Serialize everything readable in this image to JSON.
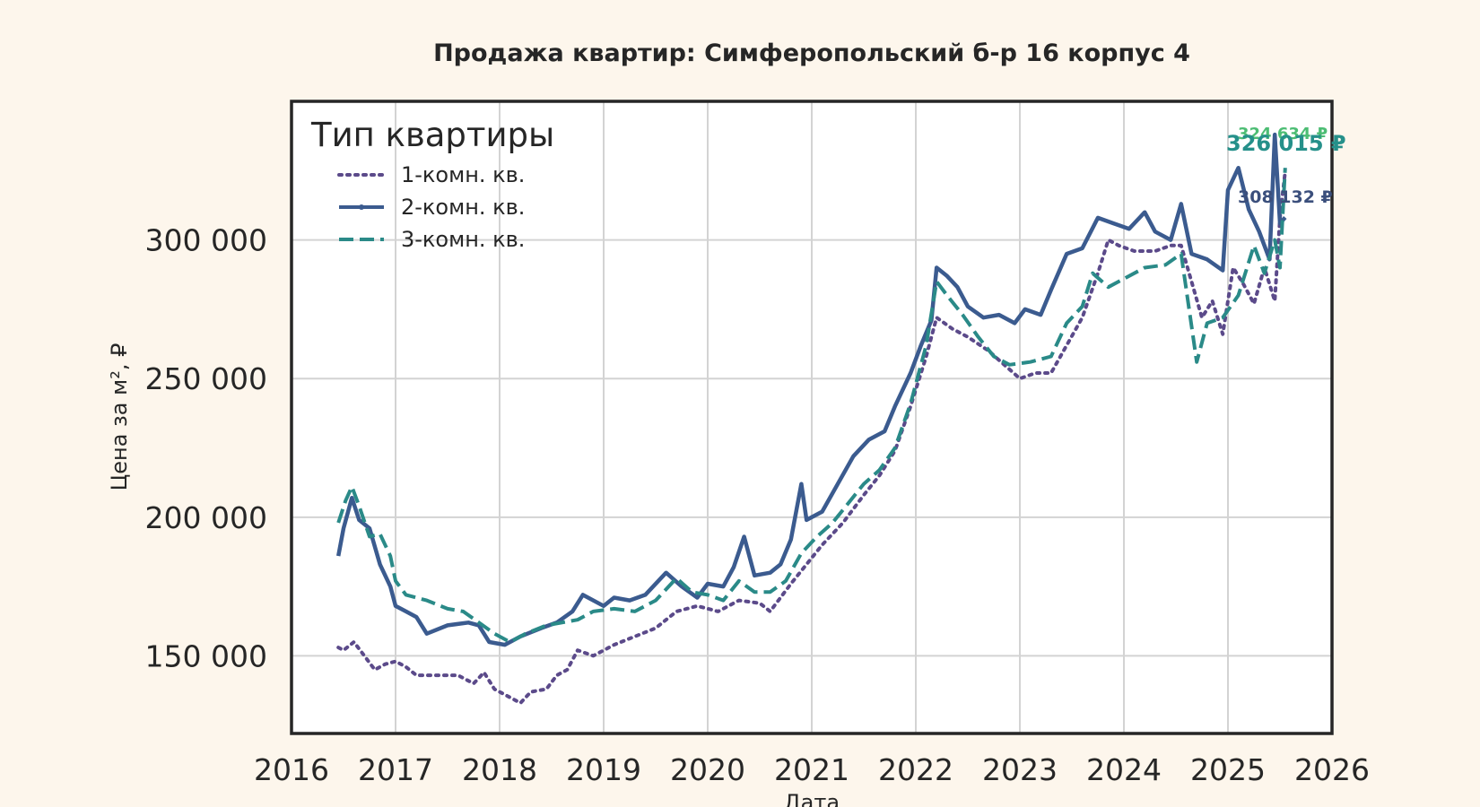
{
  "chart_data": {
    "type": "line",
    "title": "Продажа квартир: Симферопольский б-р 16 корпус 4",
    "xlabel": "Дата",
    "ylabel": "Цена за м², ₽",
    "xlim": [
      2016.0,
      2026.0
    ],
    "ylim": [
      122000,
      350000
    ],
    "x_ticks": [
      "2016",
      "2017",
      "2018",
      "2019",
      "2020",
      "2021",
      "2022",
      "2023",
      "2024",
      "2025",
      "2026"
    ],
    "y_ticks": [
      "150 000",
      "200 000",
      "250 000",
      "300 000"
    ],
    "y_tick_values": [
      150000,
      200000,
      250000,
      300000
    ],
    "grid": true,
    "legend": {
      "title": "Тип квартиры",
      "placement": "top-left"
    },
    "series": [
      {
        "name": "1-комн. кв.",
        "color": "#5b4a8a",
        "style": "dotted",
        "end_label": "324 634 ₽",
        "end_label_color": "#4dbd74",
        "points": [
          [
            2016.45,
            153000
          ],
          [
            2016.5,
            152000
          ],
          [
            2016.6,
            155000
          ],
          [
            2016.7,
            150000
          ],
          [
            2016.8,
            145000
          ],
          [
            2016.9,
            147000
          ],
          [
            2017.0,
            148000
          ],
          [
            2017.1,
            146000
          ],
          [
            2017.2,
            143000
          ],
          [
            2017.4,
            143000
          ],
          [
            2017.6,
            143000
          ],
          [
            2017.75,
            140000
          ],
          [
            2017.85,
            144000
          ],
          [
            2017.95,
            138000
          ],
          [
            2018.1,
            135000
          ],
          [
            2018.2,
            133000
          ],
          [
            2018.3,
            137000
          ],
          [
            2018.45,
            138000
          ],
          [
            2018.55,
            143000
          ],
          [
            2018.65,
            145000
          ],
          [
            2018.75,
            152000
          ],
          [
            2018.9,
            150000
          ],
          [
            2019.1,
            154000
          ],
          [
            2019.3,
            157000
          ],
          [
            2019.5,
            160000
          ],
          [
            2019.7,
            166000
          ],
          [
            2019.9,
            168000
          ],
          [
            2020.1,
            166000
          ],
          [
            2020.3,
            170000
          ],
          [
            2020.5,
            169000
          ],
          [
            2020.6,
            166000
          ],
          [
            2020.8,
            176000
          ],
          [
            2020.95,
            183000
          ],
          [
            2021.1,
            190000
          ],
          [
            2021.3,
            198000
          ],
          [
            2021.5,
            208000
          ],
          [
            2021.65,
            215000
          ],
          [
            2021.8,
            224000
          ],
          [
            2021.95,
            240000
          ],
          [
            2022.1,
            258000
          ],
          [
            2022.2,
            272000
          ],
          [
            2022.35,
            268000
          ],
          [
            2022.5,
            265000
          ],
          [
            2022.7,
            260000
          ],
          [
            2022.85,
            255000
          ],
          [
            2023.0,
            250000
          ],
          [
            2023.15,
            252000
          ],
          [
            2023.3,
            252000
          ],
          [
            2023.45,
            262000
          ],
          [
            2023.6,
            272000
          ],
          [
            2023.75,
            288000
          ],
          [
            2023.85,
            300000
          ],
          [
            2023.95,
            298000
          ],
          [
            2024.1,
            296000
          ],
          [
            2024.3,
            296000
          ],
          [
            2024.45,
            298000
          ],
          [
            2024.55,
            298000
          ],
          [
            2024.65,
            285000
          ],
          [
            2024.75,
            272000
          ],
          [
            2024.85,
            278000
          ],
          [
            2024.95,
            266000
          ],
          [
            2025.05,
            290000
          ],
          [
            2025.15,
            284000
          ],
          [
            2025.25,
            277000
          ],
          [
            2025.35,
            290000
          ],
          [
            2025.45,
            278000
          ],
          [
            2025.5,
            308000
          ],
          [
            2025.55,
            324634
          ]
        ]
      },
      {
        "name": "2-комн. кв.",
        "color": "#3b5b8f",
        "style": "solid",
        "end_label": "308 132 ₽",
        "end_label_color": "#3b4f7c",
        "points": [
          [
            2016.45,
            186000
          ],
          [
            2016.5,
            196000
          ],
          [
            2016.58,
            207000
          ],
          [
            2016.65,
            199000
          ],
          [
            2016.75,
            196000
          ],
          [
            2016.85,
            183000
          ],
          [
            2016.95,
            175000
          ],
          [
            2017.0,
            168000
          ],
          [
            2017.1,
            166000
          ],
          [
            2017.2,
            164000
          ],
          [
            2017.3,
            158000
          ],
          [
            2017.5,
            161000
          ],
          [
            2017.7,
            162000
          ],
          [
            2017.8,
            161000
          ],
          [
            2017.9,
            155000
          ],
          [
            2018.05,
            154000
          ],
          [
            2018.2,
            157000
          ],
          [
            2018.4,
            160000
          ],
          [
            2018.55,
            162000
          ],
          [
            2018.7,
            166000
          ],
          [
            2018.8,
            172000
          ],
          [
            2019.0,
            168000
          ],
          [
            2019.1,
            171000
          ],
          [
            2019.25,
            170000
          ],
          [
            2019.4,
            172000
          ],
          [
            2019.6,
            180000
          ],
          [
            2019.75,
            175000
          ],
          [
            2019.9,
            171000
          ],
          [
            2020.0,
            176000
          ],
          [
            2020.15,
            175000
          ],
          [
            2020.25,
            182000
          ],
          [
            2020.35,
            193000
          ],
          [
            2020.45,
            179000
          ],
          [
            2020.6,
            180000
          ],
          [
            2020.7,
            183000
          ],
          [
            2020.8,
            192000
          ],
          [
            2020.9,
            212000
          ],
          [
            2020.95,
            199000
          ],
          [
            2021.1,
            202000
          ],
          [
            2021.25,
            212000
          ],
          [
            2021.4,
            222000
          ],
          [
            2021.55,
            228000
          ],
          [
            2021.7,
            231000
          ],
          [
            2021.8,
            240000
          ],
          [
            2021.95,
            252000
          ],
          [
            2022.05,
            262000
          ],
          [
            2022.15,
            271000
          ],
          [
            2022.2,
            290000
          ],
          [
            2022.3,
            287000
          ],
          [
            2022.4,
            283000
          ],
          [
            2022.5,
            276000
          ],
          [
            2022.65,
            272000
          ],
          [
            2022.8,
            273000
          ],
          [
            2022.95,
            270000
          ],
          [
            2023.05,
            275000
          ],
          [
            2023.2,
            273000
          ],
          [
            2023.3,
            282000
          ],
          [
            2023.45,
            295000
          ],
          [
            2023.6,
            297000
          ],
          [
            2023.75,
            308000
          ],
          [
            2023.9,
            306000
          ],
          [
            2024.05,
            304000
          ],
          [
            2024.2,
            310000
          ],
          [
            2024.3,
            303000
          ],
          [
            2024.45,
            300000
          ],
          [
            2024.55,
            313000
          ],
          [
            2024.65,
            295000
          ],
          [
            2024.8,
            293000
          ],
          [
            2024.95,
            289000
          ],
          [
            2025.0,
            318000
          ],
          [
            2025.1,
            326000
          ],
          [
            2025.2,
            311000
          ],
          [
            2025.3,
            303000
          ],
          [
            2025.4,
            293000
          ],
          [
            2025.45,
            338000
          ],
          [
            2025.5,
            306000
          ],
          [
            2025.55,
            308132
          ]
        ]
      },
      {
        "name": "3-комн. кв.",
        "color": "#2a8a88",
        "style": "dashed",
        "end_label": "326 015 ₽",
        "end_label_color": "#25908a",
        "points": [
          [
            2016.45,
            198000
          ],
          [
            2016.52,
            206000
          ],
          [
            2016.58,
            211000
          ],
          [
            2016.65,
            204000
          ],
          [
            2016.75,
            193000
          ],
          [
            2016.85,
            194000
          ],
          [
            2016.95,
            186000
          ],
          [
            2017.0,
            177000
          ],
          [
            2017.1,
            172000
          ],
          [
            2017.3,
            170000
          ],
          [
            2017.5,
            167000
          ],
          [
            2017.65,
            166000
          ],
          [
            2017.8,
            162000
          ],
          [
            2017.95,
            158000
          ],
          [
            2018.1,
            155000
          ],
          [
            2018.25,
            158000
          ],
          [
            2018.45,
            161000
          ],
          [
            2018.6,
            162000
          ],
          [
            2018.75,
            163000
          ],
          [
            2018.9,
            166000
          ],
          [
            2019.1,
            167000
          ],
          [
            2019.3,
            166000
          ],
          [
            2019.5,
            170000
          ],
          [
            2019.7,
            178000
          ],
          [
            2019.85,
            173000
          ],
          [
            2020.0,
            172000
          ],
          [
            2020.15,
            170000
          ],
          [
            2020.3,
            177000
          ],
          [
            2020.45,
            173000
          ],
          [
            2020.6,
            173000
          ],
          [
            2020.75,
            177000
          ],
          [
            2020.9,
            187000
          ],
          [
            2021.05,
            193000
          ],
          [
            2021.2,
            198000
          ],
          [
            2021.35,
            205000
          ],
          [
            2021.5,
            212000
          ],
          [
            2021.65,
            217000
          ],
          [
            2021.8,
            225000
          ],
          [
            2021.95,
            241000
          ],
          [
            2022.1,
            262000
          ],
          [
            2022.2,
            285000
          ],
          [
            2022.3,
            280000
          ],
          [
            2022.45,
            273000
          ],
          [
            2022.6,
            265000
          ],
          [
            2022.75,
            258000
          ],
          [
            2022.9,
            255000
          ],
          [
            2023.1,
            256000
          ],
          [
            2023.3,
            258000
          ],
          [
            2023.45,
            270000
          ],
          [
            2023.6,
            276000
          ],
          [
            2023.7,
            288000
          ],
          [
            2023.85,
            283000
          ],
          [
            2024.0,
            286000
          ],
          [
            2024.2,
            290000
          ],
          [
            2024.4,
            291000
          ],
          [
            2024.55,
            295000
          ],
          [
            2024.6,
            282000
          ],
          [
            2024.7,
            256000
          ],
          [
            2024.8,
            270000
          ],
          [
            2024.95,
            272000
          ],
          [
            2025.1,
            280000
          ],
          [
            2025.25,
            298000
          ],
          [
            2025.35,
            288000
          ],
          [
            2025.45,
            300000
          ],
          [
            2025.5,
            290000
          ],
          [
            2025.55,
            326015
          ]
        ]
      }
    ]
  }
}
